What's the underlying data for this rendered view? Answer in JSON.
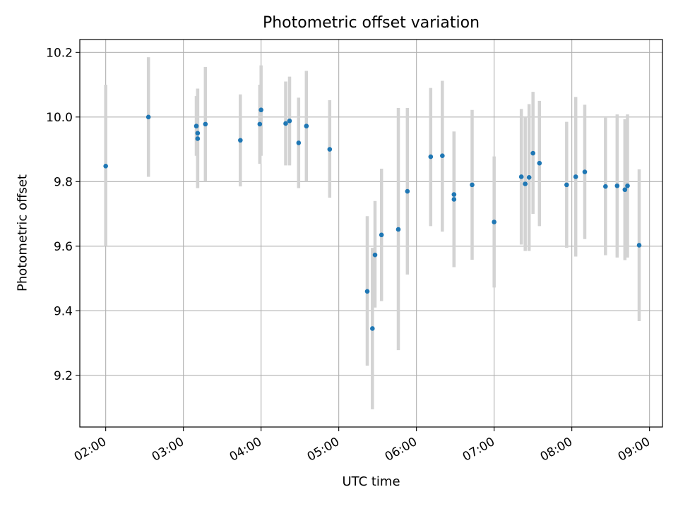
{
  "chart_data": {
    "type": "scatter",
    "title": "Photometric offset variation",
    "xlabel": "UTC time",
    "ylabel": "Photometric offset",
    "x_ticks": [
      "02:00",
      "03:00",
      "04:00",
      "05:00",
      "06:00",
      "07:00",
      "08:00",
      "09:00"
    ],
    "y_ticks": [
      "9.2",
      "9.4",
      "9.6",
      "9.8",
      "10.0",
      "10.2"
    ],
    "xlim": [
      "01:40",
      "09:10"
    ],
    "ylim": [
      9.04,
      10.24
    ],
    "grid": true,
    "point_color": "#1f77b4",
    "errorbar_color": "#d3d3d3",
    "points": [
      {
        "x": "02:00",
        "y": 9.848,
        "lo": 9.6,
        "hi": 10.1
      },
      {
        "x": "02:33",
        "y": 10.0,
        "lo": 9.815,
        "hi": 10.185
      },
      {
        "x": "03:10",
        "y": 9.972,
        "lo": 9.88,
        "hi": 10.065
      },
      {
        "x": "03:11",
        "y": 9.95,
        "lo": 9.78,
        "hi": 10.088
      },
      {
        "x": "03:11",
        "y": 9.933,
        "lo": 9.78,
        "hi": 10.088
      },
      {
        "x": "03:17",
        "y": 9.978,
        "lo": 9.8,
        "hi": 10.155
      },
      {
        "x": "03:44",
        "y": 9.928,
        "lo": 9.785,
        "hi": 10.07
      },
      {
        "x": "03:59",
        "y": 9.978,
        "lo": 9.855,
        "hi": 10.1
      },
      {
        "x": "04:00",
        "y": 10.022,
        "lo": 9.88,
        "hi": 10.16
      },
      {
        "x": "04:19",
        "y": 9.98,
        "lo": 9.85,
        "hi": 10.11
      },
      {
        "x": "04:22",
        "y": 9.988,
        "lo": 9.85,
        "hi": 10.125
      },
      {
        "x": "04:29",
        "y": 9.92,
        "lo": 9.78,
        "hi": 10.06
      },
      {
        "x": "04:35",
        "y": 9.972,
        "lo": 9.8,
        "hi": 10.143
      },
      {
        "x": "04:53",
        "y": 9.9,
        "lo": 9.75,
        "hi": 10.052
      },
      {
        "x": "05:22",
        "y": 9.46,
        "lo": 9.23,
        "hi": 9.693
      },
      {
        "x": "05:26",
        "y": 9.345,
        "lo": 9.095,
        "hi": 9.595
      },
      {
        "x": "05:28",
        "y": 9.573,
        "lo": 9.41,
        "hi": 9.74
      },
      {
        "x": "05:33",
        "y": 9.635,
        "lo": 9.43,
        "hi": 9.84
      },
      {
        "x": "05:46",
        "y": 9.652,
        "lo": 9.278,
        "hi": 10.028
      },
      {
        "x": "05:53",
        "y": 9.77,
        "lo": 9.512,
        "hi": 10.028
      },
      {
        "x": "06:11",
        "y": 9.877,
        "lo": 9.662,
        "hi": 10.09
      },
      {
        "x": "06:20",
        "y": 9.88,
        "lo": 9.645,
        "hi": 10.112
      },
      {
        "x": "06:29",
        "y": 9.76,
        "lo": 9.535,
        "hi": 9.955
      },
      {
        "x": "06:29",
        "y": 9.745,
        "lo": 9.535,
        "hi": 9.955
      },
      {
        "x": "06:43",
        "y": 9.79,
        "lo": 9.558,
        "hi": 10.022
      },
      {
        "x": "07:00",
        "y": 9.675,
        "lo": 9.472,
        "hi": 9.878
      },
      {
        "x": "07:21",
        "y": 9.815,
        "lo": 9.605,
        "hi": 10.025
      },
      {
        "x": "07:24",
        "y": 9.793,
        "lo": 9.585,
        "hi": 10.0
      },
      {
        "x": "07:27",
        "y": 9.813,
        "lo": 9.585,
        "hi": 10.04
      },
      {
        "x": "07:30",
        "y": 9.888,
        "lo": 9.7,
        "hi": 10.078
      },
      {
        "x": "07:35",
        "y": 9.857,
        "lo": 9.662,
        "hi": 10.05
      },
      {
        "x": "07:56",
        "y": 9.79,
        "lo": 9.595,
        "hi": 9.985
      },
      {
        "x": "08:03",
        "y": 9.815,
        "lo": 9.568,
        "hi": 10.062
      },
      {
        "x": "08:10",
        "y": 9.83,
        "lo": 9.622,
        "hi": 10.038
      },
      {
        "x": "08:26",
        "y": 9.785,
        "lo": 9.572,
        "hi": 9.998
      },
      {
        "x": "08:35",
        "y": 9.787,
        "lo": 9.565,
        "hi": 10.008
      },
      {
        "x": "08:41",
        "y": 9.775,
        "lo": 9.557,
        "hi": 9.993
      },
      {
        "x": "08:43",
        "y": 9.787,
        "lo": 9.565,
        "hi": 10.008
      },
      {
        "x": "08:52",
        "y": 9.603,
        "lo": 9.368,
        "hi": 9.838
      }
    ]
  }
}
